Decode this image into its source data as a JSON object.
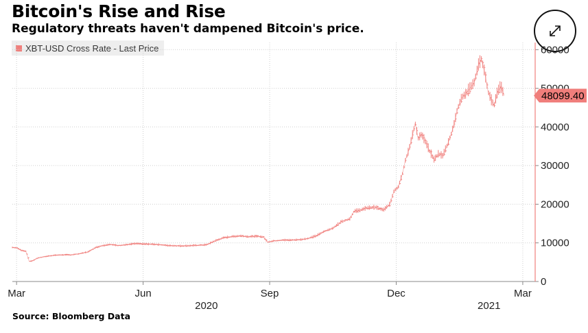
{
  "header": {
    "title": "Bitcoin's Rise and Rise",
    "subtitle": "Regulatory threats haven't dampened Bitcoin's price."
  },
  "legend": {
    "label": "XBT-USD Cross Rate - Last Price"
  },
  "source": "Source: Bloomberg Data",
  "last_price_label": "48099.40",
  "colors": {
    "series": "#f07e7b",
    "price_tag": "#f07e7b",
    "grid": "#cfcfcf"
  },
  "icons": {
    "expand": "expand-arrows-icon"
  },
  "chart_data": {
    "type": "line",
    "title": "Bitcoin's Rise and Rise",
    "subtitle": "Regulatory threats haven't dampened Bitcoin's price.",
    "xlabel": "",
    "ylabel": "",
    "series_name": "XBT-USD Cross Rate - Last Price",
    "ylim": [
      0,
      60000
    ],
    "y_ticks": [
      0,
      10000,
      20000,
      30000,
      40000,
      50000,
      60000
    ],
    "y_tick_labels": [
      "0",
      "10000",
      "20000",
      "30000",
      "40000",
      "50000",
      "60000"
    ],
    "x_ticks": [
      {
        "label": "Mar",
        "month_index": 2
      },
      {
        "label": "Jun",
        "month_index": 5
      },
      {
        "label": "Sep",
        "month_index": 8
      },
      {
        "label": "Dec",
        "month_index": 11
      },
      {
        "label": "Mar",
        "month_index": 14
      }
    ],
    "year_labels": [
      {
        "label": "2020",
        "month_index": 6.5
      },
      {
        "label": "2021",
        "month_index": 13.2
      }
    ],
    "xlim_months": [
      1.9,
      14.05
    ],
    "last_price": 48099.4,
    "points": [
      {
        "m": 1.9,
        "v": 8800
      },
      {
        "m": 2.0,
        "v": 8700
      },
      {
        "m": 2.1,
        "v": 8100
      },
      {
        "m": 2.22,
        "v": 7800
      },
      {
        "m": 2.3,
        "v": 5200
      },
      {
        "m": 2.38,
        "v": 5400
      },
      {
        "m": 2.5,
        "v": 6100
      },
      {
        "m": 2.7,
        "v": 6500
      },
      {
        "m": 2.9,
        "v": 6800
      },
      {
        "m": 3.1,
        "v": 6900
      },
      {
        "m": 3.3,
        "v": 6900
      },
      {
        "m": 3.5,
        "v": 7200
      },
      {
        "m": 3.7,
        "v": 7700
      },
      {
        "m": 3.85,
        "v": 8700
      },
      {
        "m": 4.0,
        "v": 9200
      },
      {
        "m": 4.2,
        "v": 9600
      },
      {
        "m": 4.4,
        "v": 9300
      },
      {
        "m": 4.6,
        "v": 9500
      },
      {
        "m": 4.8,
        "v": 9800
      },
      {
        "m": 5.0,
        "v": 9700
      },
      {
        "m": 5.3,
        "v": 9600
      },
      {
        "m": 5.6,
        "v": 9300
      },
      {
        "m": 5.9,
        "v": 9200
      },
      {
        "m": 6.2,
        "v": 9300
      },
      {
        "m": 6.5,
        "v": 9500
      },
      {
        "m": 6.7,
        "v": 10500
      },
      {
        "m": 6.9,
        "v": 11300
      },
      {
        "m": 7.1,
        "v": 11600
      },
      {
        "m": 7.3,
        "v": 11800
      },
      {
        "m": 7.5,
        "v": 11600
      },
      {
        "m": 7.7,
        "v": 11700
      },
      {
        "m": 7.85,
        "v": 11500
      },
      {
        "m": 7.95,
        "v": 10200
      },
      {
        "m": 8.1,
        "v": 10500
      },
      {
        "m": 8.3,
        "v": 10700
      },
      {
        "m": 8.5,
        "v": 10700
      },
      {
        "m": 8.7,
        "v": 10800
      },
      {
        "m": 8.9,
        "v": 11100
      },
      {
        "m": 9.1,
        "v": 11800
      },
      {
        "m": 9.3,
        "v": 13000
      },
      {
        "m": 9.5,
        "v": 13800
      },
      {
        "m": 9.7,
        "v": 15500
      },
      {
        "m": 9.9,
        "v": 16200
      },
      {
        "m": 10.0,
        "v": 18200
      },
      {
        "m": 10.1,
        "v": 18300
      },
      {
        "m": 10.3,
        "v": 19000
      },
      {
        "m": 10.5,
        "v": 19200
      },
      {
        "m": 10.7,
        "v": 18500
      },
      {
        "m": 10.85,
        "v": 20000
      },
      {
        "m": 10.95,
        "v": 23500
      },
      {
        "m": 11.05,
        "v": 24500
      },
      {
        "m": 11.15,
        "v": 28000
      },
      {
        "m": 11.22,
        "v": 31500
      },
      {
        "m": 11.3,
        "v": 34000
      },
      {
        "m": 11.4,
        "v": 38500
      },
      {
        "m": 11.45,
        "v": 41000
      },
      {
        "m": 11.52,
        "v": 37000
      },
      {
        "m": 11.6,
        "v": 38000
      },
      {
        "m": 11.7,
        "v": 36000
      },
      {
        "m": 11.8,
        "v": 33500
      },
      {
        "m": 11.9,
        "v": 31500
      },
      {
        "m": 12.0,
        "v": 33000
      },
      {
        "m": 12.1,
        "v": 32500
      },
      {
        "m": 12.2,
        "v": 35000
      },
      {
        "m": 12.3,
        "v": 38000
      },
      {
        "m": 12.38,
        "v": 41000
      },
      {
        "m": 12.45,
        "v": 44500
      },
      {
        "m": 12.55,
        "v": 47500
      },
      {
        "m": 12.65,
        "v": 48500
      },
      {
        "m": 12.75,
        "v": 50000
      },
      {
        "m": 12.85,
        "v": 51500
      },
      {
        "m": 12.95,
        "v": 56000
      },
      {
        "m": 13.02,
        "v": 57500
      },
      {
        "m": 13.1,
        "v": 54000
      },
      {
        "m": 13.18,
        "v": 49000
      },
      {
        "m": 13.25,
        "v": 47000
      },
      {
        "m": 13.32,
        "v": 45500
      },
      {
        "m": 13.4,
        "v": 49000
      },
      {
        "m": 13.48,
        "v": 50500
      },
      {
        "m": 13.56,
        "v": 48099
      }
    ]
  }
}
